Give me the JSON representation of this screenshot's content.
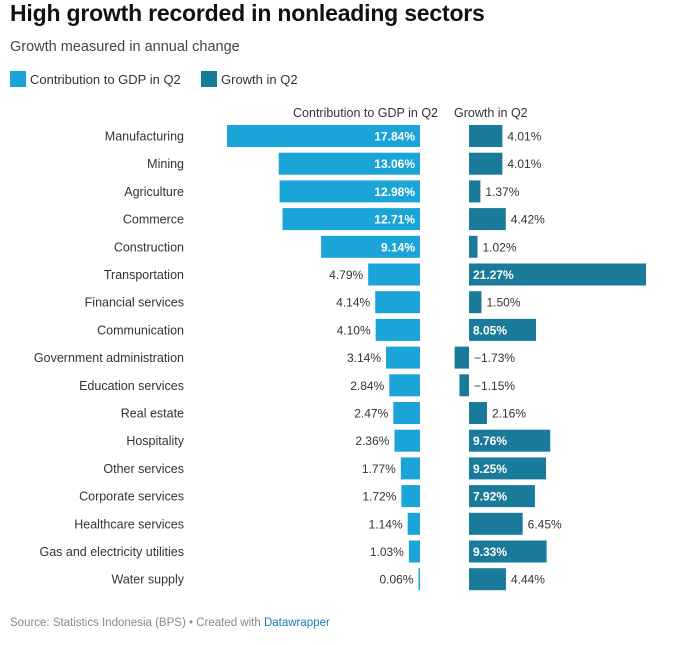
{
  "title": "High growth recorded in nonleading sectors",
  "subtitle": "Growth measured in annual change",
  "legend": [
    {
      "label": "Contribution to GDP in Q2",
      "color": "#1aa4d8"
    },
    {
      "label": "Growth in Q2",
      "color": "#1a7a99"
    }
  ],
  "footer": {
    "source": "Source: Statistics Indonesia (BPS) • Created with ",
    "link": "Datawrapper"
  },
  "chart_data": {
    "type": "bar",
    "categories": [
      "Manufacturing",
      "Mining",
      "Agriculture",
      "Commerce",
      "Construction",
      "Transportation",
      "Financial services",
      "Communication",
      "Government administration",
      "Education services",
      "Real estate",
      "Hospitality",
      "Other services",
      "Corporate services",
      "Healthcare services",
      "Gas and electricity utilities",
      "Water supply"
    ],
    "series": [
      {
        "name": "Contribution to GDP in Q2",
        "color": "#1aa4d8",
        "values": [
          17.84,
          13.06,
          12.98,
          12.71,
          9.14,
          4.79,
          4.14,
          4.1,
          3.14,
          2.84,
          2.47,
          2.36,
          1.77,
          1.72,
          1.14,
          1.03,
          0.06
        ],
        "labels": [
          "17.84%",
          "13.06%",
          "12.98%",
          "12.71%",
          "9.14%",
          "4.79%",
          "4.14%",
          "4.10%",
          "3.14%",
          "2.84%",
          "2.47%",
          "2.36%",
          "1.77%",
          "1.72%",
          "1.14%",
          "1.03%",
          "0.06%"
        ]
      },
      {
        "name": "Growth in Q2",
        "color": "#1a7a99",
        "values": [
          4.01,
          4.01,
          1.37,
          4.42,
          1.02,
          21.27,
          1.5,
          8.05,
          -1.73,
          -1.15,
          2.16,
          9.76,
          9.25,
          7.92,
          6.45,
          9.33,
          4.44
        ],
        "labels": [
          "4.01%",
          "4.01%",
          "1.37%",
          "4.42%",
          "1.02%",
          "21.27%",
          "1.50%",
          "8.05%",
          "−1.73%",
          "−1.15%",
          "2.16%",
          "9.76%",
          "9.25%",
          "7.92%",
          "6.45%",
          "9.33%",
          "4.44%"
        ]
      }
    ],
    "column_headers": [
      "Contribution to GDP in Q2",
      "Growth in Q2"
    ],
    "label_color_inside": "#ffffff",
    "label_color_outside": "#333333"
  }
}
